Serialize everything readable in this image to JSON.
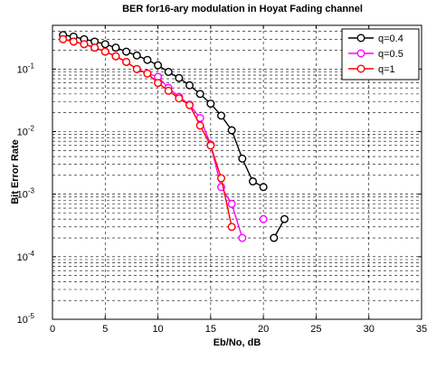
{
  "chart_data": {
    "type": "line",
    "title": "BER for16-ary modulation in Hoyat Fading channel",
    "xlabel": "Eb/No, dB",
    "ylabel": "Bit Error Rate",
    "xlim": [
      0,
      35
    ],
    "ylim": [
      1e-05,
      0.5
    ],
    "yscale": "log",
    "grid": true,
    "legend_position": "top-right",
    "x_ticks": [
      "0",
      "5",
      "10",
      "15",
      "20",
      "25",
      "30",
      "35"
    ],
    "y_ticks": [
      {
        "base": "10",
        "exp": "-1",
        "value": 0.1
      },
      {
        "base": "10",
        "exp": "-2",
        "value": 0.01
      },
      {
        "base": "10",
        "exp": "-3",
        "value": 0.001
      },
      {
        "base": "10",
        "exp": "-4",
        "value": 0.0001
      },
      {
        "base": "10",
        "exp": "-5",
        "value": 1e-05
      }
    ],
    "series": [
      {
        "name": "q=0.4",
        "color": "#000000",
        "points": [
          [
            1,
            0.35
          ],
          [
            2,
            0.33
          ],
          [
            3,
            0.3
          ],
          [
            4,
            0.275
          ],
          [
            5,
            0.25
          ],
          [
            6,
            0.22
          ],
          [
            7,
            0.19
          ],
          [
            8,
            0.165
          ],
          [
            9,
            0.14
          ],
          [
            10,
            0.115
          ],
          [
            11,
            0.09
          ],
          [
            12,
            0.072
          ],
          [
            13,
            0.055
          ],
          [
            14,
            0.04
          ],
          [
            15,
            0.028
          ],
          [
            16,
            0.018
          ],
          [
            17,
            0.0105
          ],
          [
            18,
            0.0037
          ],
          [
            19,
            0.0016
          ],
          [
            20,
            0.0013
          ],
          [
            21,
            0.0002
          ],
          [
            22,
            0.0004
          ]
        ],
        "segments": [
          [
            0,
            19
          ],
          [
            20,
            21
          ]
        ]
      },
      {
        "name": "q=0.5",
        "color": "#ff00ff",
        "points": [
          [
            1,
            0.3
          ],
          [
            2,
            0.275
          ],
          [
            3,
            0.25
          ],
          [
            4,
            0.22
          ],
          [
            5,
            0.19
          ],
          [
            6,
            0.16
          ],
          [
            7,
            0.13
          ],
          [
            8,
            0.1
          ],
          [
            9,
            0.085
          ],
          [
            10,
            0.075
          ],
          [
            11,
            0.05
          ],
          [
            12,
            0.036
          ],
          [
            13,
            0.027
          ],
          [
            14,
            0.0165
          ],
          [
            15,
            0.0062
          ],
          [
            16,
            0.0013
          ],
          [
            17,
            0.0007
          ],
          [
            18,
            0.0002
          ],
          [
            20,
            0.0004
          ]
        ],
        "segments": [
          [
            0,
            17
          ]
        ]
      },
      {
        "name": "q=1",
        "color": "#ff0000",
        "points": [
          [
            1,
            0.3
          ],
          [
            2,
            0.275
          ],
          [
            3,
            0.25
          ],
          [
            4,
            0.22
          ],
          [
            5,
            0.19
          ],
          [
            6,
            0.16
          ],
          [
            7,
            0.13
          ],
          [
            8,
            0.1
          ],
          [
            9,
            0.085
          ],
          [
            10,
            0.06
          ],
          [
            11,
            0.045
          ],
          [
            12,
            0.034
          ],
          [
            13,
            0.0265
          ],
          [
            14,
            0.0125
          ],
          [
            15,
            0.006
          ],
          [
            16,
            0.0018
          ],
          [
            17,
            0.0003
          ]
        ],
        "segments": [
          [
            0,
            16
          ]
        ]
      }
    ]
  }
}
